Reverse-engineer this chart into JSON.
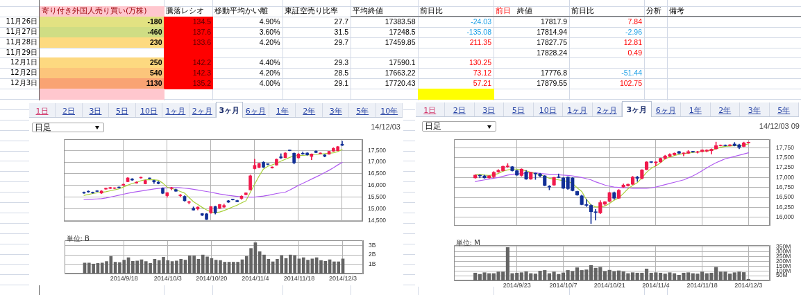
{
  "chart_data": [
    {
      "type": "other",
      "categories": [
        "寄り付き外国人売り買い(万株)",
        "騰落レシオ",
        "移動平均かい離",
        "東証空売り比率",
        "平均終値",
        "前日比",
        "終値",
        "前日比",
        "分析",
        "備考"
      ],
      "y_categories": [
        "11月26日",
        "11月27日",
        "11月28日",
        "11月29日",
        "12月1日",
        "12月2日",
        "12月3日",
        null
      ],
      "cell_labels": [
        [
          "-180",
          "134.5",
          "4.90%",
          "27.7",
          "17383.58",
          "-24.03",
          "17817.9",
          "7.84",
          null,
          null
        ],
        [
          "-460",
          "137.6",
          "3.60%",
          "31.5",
          "17248.5",
          "-135.08",
          "17814.94",
          "-2.96",
          null,
          null
        ],
        [
          "230",
          "133.6",
          "4.20%",
          "29.7",
          "17459.85",
          "211.35",
          "17827.75",
          "12.81",
          null,
          null
        ],
        [
          null,
          null,
          null,
          null,
          null,
          null,
          "17828.24",
          "0.49",
          null,
          null
        ],
        [
          "250",
          "142.2",
          "4.40%",
          "29.3",
          "17590.1",
          "130.25",
          null,
          null,
          null,
          null
        ],
        [
          "540",
          "142.3",
          "4.20%",
          "28.5",
          "17663.22",
          "73.12",
          "17776.8",
          "-51.44",
          null,
          null
        ],
        [
          "1130",
          "135.2",
          "4.00%",
          "29.1",
          "17720.43",
          "57.21",
          "17879.55",
          "102.75",
          null,
          null
        ],
        [
          null,
          null,
          null,
          null,
          null,
          null,
          null,
          null,
          null,
          null
        ]
      ],
      "colors": [
        [
          "#e2e282",
          "#ff0000",
          null,
          null,
          null,
          null,
          null,
          null,
          null,
          null
        ],
        [
          "#cfdd84",
          "#ff0000",
          null,
          null,
          null,
          null,
          null,
          null,
          null,
          null
        ],
        [
          "#fdda80",
          "#ff0000",
          null,
          null,
          null,
          null,
          null,
          null,
          null,
          null
        ],
        [
          null,
          "#ff0000",
          null,
          null,
          null,
          null,
          null,
          null,
          null,
          null
        ],
        [
          "#fdd980",
          "#ff0000",
          null,
          null,
          null,
          null,
          null,
          null,
          null,
          null
        ],
        [
          "#fcc57b",
          "#ff0000",
          null,
          null,
          null,
          null,
          null,
          null,
          null,
          null
        ],
        [
          "#f9a373",
          "#ff0000",
          null,
          null,
          null,
          null,
          null,
          null,
          null,
          null
        ],
        [
          "#ffc7ce",
          null,
          null,
          null,
          null,
          "#ffff00",
          null,
          null,
          null,
          null
        ]
      ],
      "annotations": [
        "前日"
      ]
    },
    {
      "type": "other",
      "annotations": [
        "1日",
        "2日",
        "3日",
        "5日",
        "10日",
        "1ヶ月",
        "2ヶ月",
        "3ヶ月",
        "6ヶ月",
        "1年",
        "2年",
        "3年",
        "5年",
        "10年"
      ]
    },
    {
      "type": "candlestick",
      "categories": [
        null,
        null,
        null,
        null,
        null,
        null,
        null,
        null,
        null,
        "2014/9/18",
        null,
        null,
        null,
        null,
        null,
        null,
        null,
        null,
        null,
        "2014/10/3",
        null,
        null,
        null,
        null,
        null,
        null,
        null,
        null,
        null,
        "2014/10/20",
        null,
        null,
        null,
        null,
        null,
        null,
        null,
        null,
        null,
        "2014/11/4",
        null,
        null,
        null,
        null,
        null,
        null,
        null,
        null,
        null,
        "2014/11/18",
        null,
        null,
        null,
        null,
        null,
        null,
        null,
        null,
        null,
        "2014/12/3"
      ],
      "ohlc": [
        [
          15700,
          15720,
          15650,
          15670
        ],
        [
          15750,
          15770,
          15700,
          15720
        ],
        [
          15700,
          15720,
          15660,
          15680
        ],
        [
          15760,
          15780,
          15730,
          15740
        ],
        [
          15670,
          15780,
          15650,
          15760
        ],
        [
          15840,
          15890,
          15830,
          15880
        ],
        [
          15870,
          15920,
          15860,
          15910
        ],
        [
          15870,
          15900,
          15860,
          15890
        ],
        [
          15920,
          15940,
          15880,
          15900
        ],
        [
          16000,
          16060,
          15990,
          16050
        ],
        [
          16160,
          16340,
          16150,
          16320
        ],
        [
          16280,
          16300,
          16210,
          16230
        ],
        [
          16100,
          16160,
          16090,
          16140
        ],
        [
          16320,
          16370,
          16310,
          16350
        ],
        [
          16070,
          16230,
          16060,
          16210
        ],
        [
          16310,
          16320,
          16280,
          16290
        ],
        [
          16210,
          16230,
          16080,
          16150
        ],
        [
          16140,
          16170,
          16060,
          16080
        ],
        [
          15880,
          15900,
          15640,
          15660
        ],
        [
          15560,
          15700,
          15490,
          15690
        ],
        [
          15870,
          15920,
          15810,
          15880
        ],
        [
          15820,
          15850,
          15740,
          15750
        ],
        [
          15560,
          15620,
          15500,
          15580
        ],
        [
          15530,
          15560,
          15320,
          15340
        ],
        [
          15270,
          15330,
          15200,
          15290
        ],
        [
          15020,
          15080,
          14930,
          14940
        ],
        [
          15000,
          15080,
          14950,
          15070
        ],
        [
          14790,
          14800,
          14700,
          14720
        ],
        [
          14780,
          14800,
          14530,
          14540
        ],
        [
          14820,
          15100,
          14800,
          15090
        ],
        [
          15090,
          15110,
          14770,
          14820
        ],
        [
          15020,
          15190,
          15000,
          15180
        ],
        [
          15070,
          15200,
          15050,
          15140
        ],
        [
          15340,
          15360,
          15270,
          15280
        ],
        [
          15400,
          15410,
          15370,
          15380
        ],
        [
          15350,
          15370,
          15290,
          15300
        ],
        [
          15440,
          15560,
          15400,
          15540
        ],
        [
          15600,
          15690,
          15590,
          15680
        ],
        [
          15810,
          16450,
          15800,
          16410
        ],
        [
          16720,
          17130,
          16700,
          16860
        ],
        [
          16770,
          16960,
          16750,
          16940
        ],
        [
          16990,
          17020,
          16760,
          16780
        ],
        [
          16910,
          16930,
          16880,
          16900
        ],
        [
          16750,
          16800,
          16740,
          16790
        ],
        [
          16870,
          17140,
          16860,
          17120
        ],
        [
          17230,
          17360,
          17150,
          17180
        ],
        [
          17190,
          17410,
          17180,
          17390
        ],
        [
          17510,
          17520,
          17480,
          17490
        ],
        [
          17380,
          17400,
          16920,
          16970
        ],
        [
          17180,
          17370,
          17170,
          17350
        ],
        [
          17370,
          17440,
          17330,
          17350
        ],
        [
          17390,
          17410,
          17290,
          17310
        ],
        [
          17240,
          17360,
          17100,
          17350
        ],
        [
          17470,
          17490,
          17400,
          17410
        ],
        [
          17360,
          17400,
          17350,
          17380
        ],
        [
          17310,
          17330,
          17220,
          17250
        ],
        [
          17340,
          17470,
          17330,
          17460
        ],
        [
          17470,
          17620,
          17460,
          17590
        ],
        [
          17490,
          17680,
          17480,
          17660
        ],
        [
          17770,
          17900,
          17700,
          17720
        ]
      ],
      "colors": [
        "#112f96",
        "#112f96",
        "#112f96",
        "#112f96",
        "#f0194b",
        "#f0194b",
        "#f0194b",
        "#f0194b",
        "#112f96",
        "#f0194b",
        "#f0194b",
        "#112f96",
        "#f0194b",
        "#f0194b",
        "#f0194b",
        "#112f96",
        "#112f96",
        "#112f96",
        "#112f96",
        "#f0194b",
        "#f0194b",
        "#112f96",
        "#f0194b",
        "#112f96",
        "#f0194b",
        "#112f96",
        "#f0194b",
        "#112f96",
        "#112f96",
        "#f0194b",
        "#112f96",
        "#f0194b",
        "#f0194b",
        "#112f96",
        "#112f96",
        "#112f96",
        "#f0194b",
        "#f0194b",
        "#f0194b",
        "#f0194b",
        "#f0194b",
        "#112f96",
        "#112f96",
        "#f0194b",
        "#f0194b",
        "#112f96",
        "#f0194b",
        "#112f96",
        "#112f96",
        "#f0194b",
        "#112f96",
        "#112f96",
        "#f0194b",
        "#112f96",
        "#f0194b",
        "#112f96",
        "#f0194b",
        "#f0194b",
        "#f0194b",
        "#112f96"
      ],
      "series": [
        {
          "type": "line",
          "color": "#a8d03a",
          "values": [
            15570,
            15610,
            15650,
            15680,
            15700,
            15730,
            15770,
            15810,
            15850,
            15930,
            16010,
            16080,
            16130,
            16200,
            16240,
            16250,
            16240,
            16220,
            16100,
            15920,
            15870,
            15820,
            15740,
            15670,
            15480,
            15300,
            15180,
            15060,
            14950,
            14860,
            14830,
            14860,
            14920,
            15000,
            15080,
            15150,
            15250,
            15340,
            15700,
            16050,
            16400,
            16700,
            16820,
            16880,
            16950,
            17040,
            17120,
            17200,
            17270,
            17280,
            17290,
            17300,
            17320,
            17330,
            17350,
            17360,
            17380,
            17400,
            17450,
            17540
          ]
        },
        {
          "type": "line",
          "color": "#b05cf0",
          "values": [
            15390,
            15400,
            15410,
            15420,
            15430,
            15460,
            15500,
            15540,
            15580,
            15620,
            15660,
            15700,
            15730,
            15760,
            15790,
            15820,
            15850,
            15870,
            15890,
            15900,
            15910,
            15910,
            15900,
            15880,
            15860,
            15830,
            15800,
            15770,
            15740,
            15710,
            15670,
            15630,
            15600,
            15570,
            15550,
            15530,
            15510,
            15500,
            15500,
            15500,
            15520,
            15540,
            15570,
            15610,
            15650,
            15680,
            15710,
            15800,
            15900,
            16000,
            16090,
            16180,
            16270,
            16360,
            16450,
            16550,
            16650,
            16760,
            16880,
            16990
          ]
        }
      ],
      "ylim": [
        14450,
        17980
      ],
      "yticks": [
        {
          "value": 14500,
          "label": "14,500"
        },
        {
          "value": 15000,
          "label": "15,000"
        },
        {
          "value": 15500,
          "label": "15,500"
        },
        {
          "value": 16000,
          "label": "16,000"
        },
        {
          "value": 16500,
          "label": "16,500"
        },
        {
          "value": 17000,
          "label": "17,000"
        },
        {
          "value": 17500,
          "label": "17,500"
        }
      ],
      "grid": true,
      "tick_labels": "y",
      "annotations": [
        "日足",
        "14/12/03"
      ]
    },
    {
      "type": "bar",
      "categories": [
        null,
        null,
        null,
        null,
        null,
        null,
        null,
        null,
        null,
        "2014/9/18",
        null,
        null,
        null,
        null,
        null,
        null,
        null,
        null,
        null,
        "2014/10/3",
        null,
        null,
        null,
        null,
        null,
        null,
        null,
        null,
        null,
        "2014/10/20",
        null,
        null,
        null,
        null,
        null,
        null,
        null,
        null,
        null,
        "2014/11/4",
        null,
        null,
        null,
        null,
        null,
        null,
        null,
        null,
        null,
        "2014/11/18",
        null,
        null,
        null,
        null,
        null,
        null,
        null,
        null,
        null,
        "2014/12/3"
      ],
      "values": [
        1.13,
        1.13,
        1.02,
        1.09,
        1.13,
        1.29,
        1.84,
        1.22,
        1.18,
        1.44,
        1.7,
        1.31,
        1.35,
        1.48,
        1.29,
        1.09,
        1.53,
        1.4,
        1.75,
        1.4,
        1.29,
        1.35,
        1.53,
        1.44,
        1.88,
        1.88,
        1.53,
        1.99,
        1.79,
        1.62,
        1.44,
        1.4,
        1.22,
        1.22,
        1.22,
        1.22,
        1.48,
        1.84,
        2.69,
        3.3,
        2.34,
        1.99,
        1.53,
        1.26,
        1.53,
        1.92,
        1.62,
        1.99,
        1.92,
        1.57,
        1.7,
        1.44,
        1.57,
        1.7,
        1.4,
        1.31,
        1.48,
        1.26,
        1.26,
        1.57
      ],
      "color": "#646464",
      "ylim": [
        0,
        3.55
      ],
      "yticks": [
        {
          "value": 1,
          "label": "1B"
        },
        {
          "value": 2,
          "label": "2B"
        },
        {
          "value": 3,
          "label": "3B"
        }
      ],
      "grid": true,
      "ylabel": "単位: B"
    },
    {
      "type": "other",
      "annotations": [
        "1日",
        "2日",
        "3日",
        "5日",
        "10日",
        "1ヶ月",
        "2ヶ月",
        "3ヶ月",
        "6ヶ月",
        "1年",
        "2年",
        "3年",
        "5年"
      ]
    },
    {
      "type": "candlestick",
      "categories": [
        null,
        null,
        null,
        null,
        null,
        null,
        null,
        null,
        null,
        "2014/9/23",
        null,
        null,
        null,
        null,
        null,
        null,
        null,
        null,
        null,
        "2014/10/7",
        null,
        null,
        null,
        null,
        null,
        null,
        null,
        null,
        null,
        "2014/10/21",
        null,
        null,
        null,
        null,
        null,
        null,
        null,
        null,
        null,
        "2014/11/4",
        null,
        null,
        null,
        null,
        null,
        null,
        null,
        null,
        null,
        "2014/11/18",
        null,
        null,
        null,
        null,
        null,
        null,
        null,
        null,
        null,
        "2014/12/3"
      ],
      "ohlc": [
        [
          16990,
          17070,
          16980,
          17060
        ],
        [
          17050,
          17070,
          16990,
          17040
        ],
        [
          17040,
          17060,
          16980,
          16990
        ],
        [
          16990,
          17050,
          16980,
          17040
        ],
        [
          17020,
          17150,
          16990,
          17130
        ],
        [
          17140,
          17200,
          17130,
          17180
        ],
        [
          17170,
          17290,
          17160,
          17280
        ],
        [
          17270,
          17350,
          17250,
          17290
        ],
        [
          17270,
          17280,
          17160,
          17170
        ],
        [
          17170,
          17190,
          17050,
          17060
        ],
        [
          17050,
          17220,
          17030,
          17210
        ],
        [
          17140,
          17180,
          16950,
          16960
        ],
        [
          16960,
          17130,
          16950,
          17130
        ],
        [
          17100,
          17110,
          16950,
          17090
        ],
        [
          17090,
          17110,
          17010,
          17040
        ],
        [
          17040,
          17050,
          16790,
          16800
        ],
        [
          16780,
          16800,
          16690,
          16760
        ],
        [
          16810,
          17010,
          16800,
          17000
        ],
        [
          17010,
          17090,
          16990,
          17000
        ],
        [
          16990,
          17000,
          16720,
          16730
        ],
        [
          17010,
          17020,
          16700,
          16720
        ],
        [
          16990,
          17000,
          16660,
          16670
        ],
        [
          16650,
          16660,
          16550,
          16560
        ],
        [
          16540,
          16560,
          16310,
          16320
        ],
        [
          16320,
          16450,
          16270,
          16300
        ],
        [
          16300,
          16320,
          15840,
          16140
        ],
        [
          16140,
          16200,
          15930,
          16120
        ],
        [
          16110,
          16420,
          16090,
          16370
        ],
        [
          16330,
          16400,
          16300,
          16390
        ],
        [
          16400,
          16630,
          16390,
          16620
        ],
        [
          16620,
          16640,
          16450,
          16480
        ],
        [
          16480,
          16700,
          16470,
          16680
        ],
        [
          16760,
          16840,
          16750,
          16810
        ],
        [
          16790,
          16840,
          16780,
          16830
        ],
        [
          16830,
          17030,
          16820,
          17010
        ],
        [
          17010,
          17030,
          16900,
          16980
        ],
        [
          16980,
          17200,
          16960,
          17190
        ],
        [
          17200,
          17400,
          17190,
          17390
        ],
        [
          17390,
          17400,
          17370,
          17380
        ],
        [
          17370,
          17400,
          17290,
          17390
        ],
        [
          17390,
          17490,
          17380,
          17480
        ],
        [
          17480,
          17560,
          17460,
          17540
        ],
        [
          17530,
          17600,
          17520,
          17580
        ],
        [
          17570,
          17620,
          17560,
          17610
        ],
        [
          17650,
          17660,
          17590,
          17610
        ],
        [
          17600,
          17620,
          17540,
          17610
        ],
        [
          17610,
          17680,
          17600,
          17650
        ],
        [
          17650,
          17660,
          17630,
          17640
        ],
        [
          17630,
          17660,
          17610,
          17640
        ],
        [
          17650,
          17700,
          17640,
          17690
        ],
        [
          17660,
          17700,
          17640,
          17690
        ],
        [
          17670,
          17720,
          17590,
          17710
        ],
        [
          17720,
          17890,
          17710,
          17800
        ],
        [
          17800,
          17820,
          17790,
          17810
        ],
        [
          17810,
          17820,
          17790,
          17800
        ],
        [
          17800,
          17830,
          17790,
          17820
        ],
        [
          17840,
          17880,
          17790,
          17800
        ],
        [
          17820,
          17840,
          17720,
          17760
        ],
        [
          17780,
          17890,
          17770,
          17870
        ],
        [
          17870,
          17890,
          17860,
          17880
        ]
      ],
      "colors": [
        "#f0194b",
        "#112f96",
        "#112f96",
        "#f0194b",
        "#f0194b",
        "#f0194b",
        "#f0194b",
        "#f0194b",
        "#112f96",
        "#112f96",
        "#f0194b",
        "#112f96",
        "#f0194b",
        "#112f96",
        "#112f96",
        "#112f96",
        "#112f96",
        "#f0194b",
        "#112f96",
        "#112f96",
        "#112f96",
        "#112f96",
        "#112f96",
        "#112f96",
        "#112f96",
        "#112f96",
        "#112f96",
        "#f0194b",
        "#f0194b",
        "#f0194b",
        "#112f96",
        "#f0194b",
        "#f0194b",
        "#f0194b",
        "#f0194b",
        "#112f96",
        "#f0194b",
        "#f0194b",
        "#112f96",
        "#f0194b",
        "#f0194b",
        "#f0194b",
        "#f0194b",
        "#f0194b",
        "#112f96",
        "#f0194b",
        "#f0194b",
        "#112f96",
        "#f0194b",
        "#f0194b",
        "#f0194b",
        "#f0194b",
        "#f0194b",
        "#f0194b",
        "#112f96",
        "#f0194b",
        "#112f96",
        "#112f96",
        "#f0194b",
        "#f0194b"
      ],
      "series": [
        {
          "type": "line",
          "color": "#a8d03a",
          "values": [
            17070,
            17080,
            17060,
            17050,
            17070,
            17100,
            17160,
            17190,
            17210,
            17210,
            17190,
            17170,
            17130,
            17100,
            17070,
            17030,
            16980,
            16960,
            16940,
            16920,
            16900,
            16850,
            16740,
            16650,
            16450,
            16310,
            16260,
            16260,
            16280,
            16350,
            16430,
            16490,
            16600,
            16720,
            16800,
            16870,
            16990,
            17130,
            17230,
            17290,
            17370,
            17470,
            17510,
            17550,
            17580,
            17600,
            17610,
            17630,
            17640,
            17660,
            17670,
            17680,
            17720,
            17760,
            17780,
            17790,
            17800,
            17800,
            17820,
            17840
          ]
        },
        {
          "type": "line",
          "color": "#b05cf0",
          "values": [
            16900,
            16920,
            16940,
            16960,
            16980,
            17000,
            17030,
            17060,
            17080,
            17090,
            17100,
            17110,
            17120,
            17120,
            17100,
            17090,
            17080,
            17080,
            17070,
            17060,
            17050,
            17040,
            17020,
            17000,
            16970,
            16940,
            16890,
            16850,
            16810,
            16780,
            16760,
            16750,
            16740,
            16740,
            16730,
            16730,
            16730,
            16730,
            16740,
            16760,
            16790,
            16820,
            16850,
            16880,
            16910,
            16940,
            16990,
            17040,
            17100,
            17170,
            17240,
            17310,
            17370,
            17420,
            17470,
            17500,
            17530,
            17560,
            17590,
            17620
          ]
        }
      ],
      "ylim": [
        15790,
        17960
      ],
      "yticks": [
        {
          "value": 16000,
          "label": "16,000"
        },
        {
          "value": 16250,
          "label": "16,250"
        },
        {
          "value": 16500,
          "label": "16,500"
        },
        {
          "value": 16750,
          "label": "16,750"
        },
        {
          "value": 17000,
          "label": "17,000"
        },
        {
          "value": 17250,
          "label": "17,250"
        },
        {
          "value": 17500,
          "label": "17,500"
        },
        {
          "value": 17750,
          "label": "17,750"
        }
      ],
      "grid": true,
      "tick_labels": "y",
      "annotations": [
        "日足",
        "14/12/03 09"
      ]
    },
    {
      "type": "bar",
      "categories": [
        null,
        null,
        null,
        null,
        null,
        null,
        null,
        null,
        null,
        "2014/9/23",
        null,
        null,
        null,
        null,
        null,
        null,
        null,
        null,
        null,
        "2014/10/7",
        null,
        null,
        null,
        null,
        null,
        null,
        null,
        null,
        null,
        "2014/10/21",
        null,
        null,
        null,
        null,
        null,
        null,
        null,
        null,
        null,
        "2014/11/4",
        null,
        null,
        null,
        null,
        null,
        null,
        null,
        null,
        null,
        "2014/11/18",
        null,
        null,
        null,
        null,
        null,
        null,
        null,
        null,
        null,
        "2014/12/3"
      ],
      "values": [
        78,
        65,
        82,
        73,
        73,
        89,
        89,
        346,
        73,
        78,
        82,
        91,
        73,
        69,
        99,
        106,
        73,
        89,
        65,
        80,
        106,
        95,
        134,
        106,
        112,
        158,
        130,
        138,
        95,
        108,
        93,
        102,
        91,
        73,
        82,
        78,
        78,
        121,
        78,
        82,
        78,
        69,
        82,
        73,
        56,
        78,
        82,
        73,
        69,
        89,
        73,
        78,
        138,
        89,
        89,
        69,
        82,
        89,
        84,
        13
      ],
      "color": "#646464",
      "ylim": [
        0,
        370
      ],
      "yticks": [
        {
          "value": 50,
          "label": "50M"
        },
        {
          "value": 100,
          "label": "100M"
        },
        {
          "value": 150,
          "label": "150M"
        },
        {
          "value": 200,
          "label": "200M"
        },
        {
          "value": 250,
          "label": "250M"
        },
        {
          "value": 300,
          "label": "300M"
        },
        {
          "value": 350,
          "label": "350M"
        }
      ],
      "grid": true,
      "ylabel": "単位: M"
    }
  ]
}
